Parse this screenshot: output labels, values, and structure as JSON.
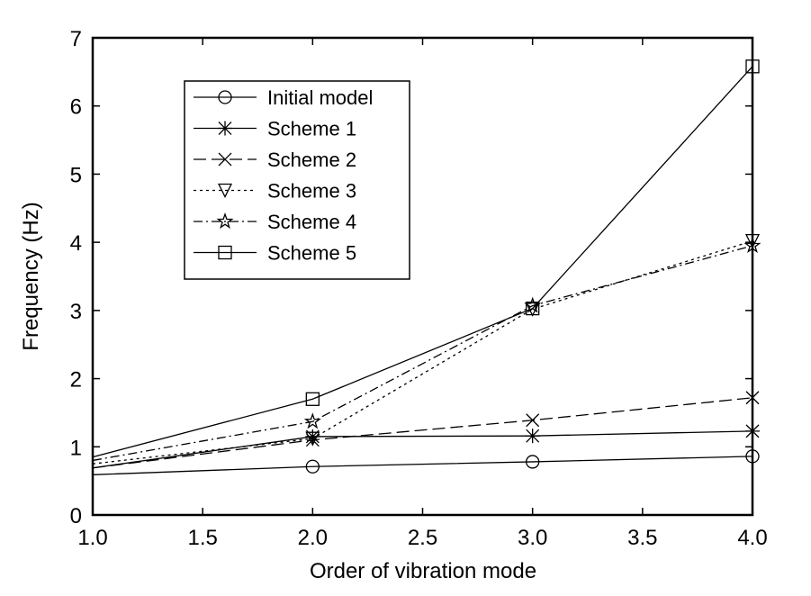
{
  "chart_data": {
    "type": "line",
    "title": "",
    "xlabel": "Order of vibration mode",
    "ylabel": "Frequency (Hz)",
    "xlim": [
      1.0,
      4.0
    ],
    "ylim": [
      0,
      7
    ],
    "xticks": [
      "1.0",
      "1.5",
      "2.0",
      "2.5",
      "3.0",
      "3.5",
      "4.0"
    ],
    "yticks": [
      "0",
      "1",
      "2",
      "3",
      "4",
      "5",
      "6",
      "7"
    ],
    "grid": false,
    "legend_position": "top-left",
    "x": [
      1,
      2,
      3,
      4
    ],
    "series": [
      {
        "name": "Initial model",
        "marker": "circle",
        "dash": "solid",
        "values": [
          0.59,
          0.71,
          0.78,
          0.86
        ]
      },
      {
        "name": "Scheme 1",
        "marker": "asterisk",
        "dash": "solid",
        "values": [
          0.69,
          1.15,
          1.16,
          1.23
        ]
      },
      {
        "name": "Scheme 2",
        "marker": "x",
        "dash": "longdash",
        "values": [
          0.69,
          1.1,
          1.39,
          1.72
        ]
      },
      {
        "name": "Scheme 3",
        "marker": "triangle-down",
        "dash": "dotted",
        "values": [
          0.75,
          1.12,
          3.02,
          4.02
        ]
      },
      {
        "name": "Scheme 4",
        "marker": "star",
        "dash": "dashdot",
        "values": [
          0.8,
          1.37,
          3.07,
          3.95
        ]
      },
      {
        "name": "Scheme 5",
        "marker": "square",
        "dash": "solid",
        "values": [
          0.85,
          1.7,
          3.03,
          6.58
        ]
      }
    ]
  }
}
